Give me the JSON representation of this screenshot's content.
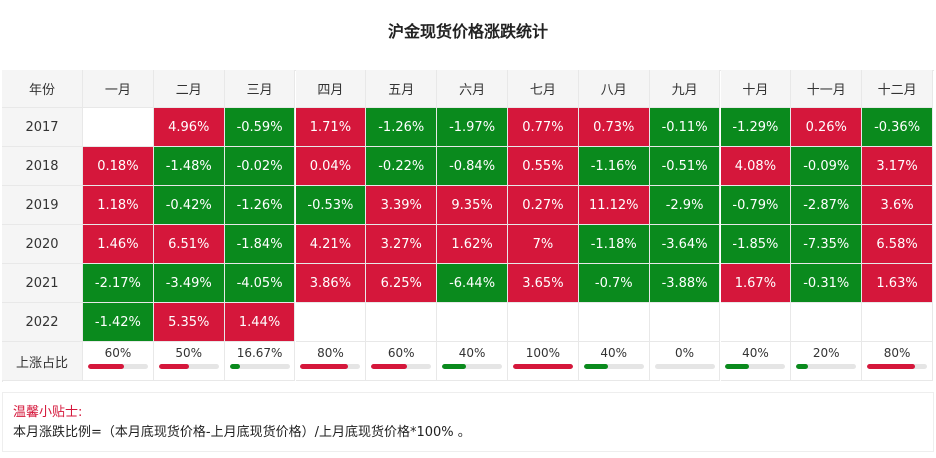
{
  "title": "沪金现货价格涨跌统计",
  "table": {
    "header": [
      "年份",
      "一月",
      "二月",
      "三月",
      "四月",
      "五月",
      "六月",
      "七月",
      "八月",
      "九月",
      "十月",
      "十一月",
      "十二月"
    ],
    "rows": [
      {
        "year": "2017",
        "cells": [
          null,
          "4.96%",
          "-0.59%",
          "1.71%",
          "-1.26%",
          "-1.97%",
          "0.77%",
          "0.73%",
          "-0.11%",
          "-1.29%",
          "0.26%",
          "-0.36%"
        ]
      },
      {
        "year": "2018",
        "cells": [
          "0.18%",
          "-1.48%",
          "-0.02%",
          "0.04%",
          "-0.22%",
          "-0.84%",
          "0.55%",
          "-1.16%",
          "-0.51%",
          "4.08%",
          "-0.09%",
          "3.17%"
        ]
      },
      {
        "year": "2019",
        "cells": [
          "1.18%",
          "-0.42%",
          "-1.26%",
          "-0.53%",
          "3.39%",
          "9.35%",
          "0.27%",
          "11.12%",
          "-2.9%",
          "-0.79%",
          "-2.87%",
          "3.6%"
        ]
      },
      {
        "year": "2020",
        "cells": [
          "1.46%",
          "6.51%",
          "-1.84%",
          "4.21%",
          "3.27%",
          "1.62%",
          "7%",
          "-1.18%",
          "-3.64%",
          "-1.85%",
          "-7.35%",
          "6.58%"
        ]
      },
      {
        "year": "2021",
        "cells": [
          "-2.17%",
          "-3.49%",
          "-4.05%",
          "3.86%",
          "6.25%",
          "-6.44%",
          "3.65%",
          "-0.7%",
          "-3.88%",
          "1.67%",
          "-0.31%",
          "1.63%"
        ]
      },
      {
        "year": "2022",
        "cells": [
          "-1.42%",
          "5.35%",
          "1.44%",
          null,
          null,
          null,
          null,
          null,
          null,
          null,
          null,
          null
        ]
      }
    ],
    "ratio": {
      "label": "上涨占比",
      "values": [
        {
          "value": 60,
          "label": "60%"
        },
        {
          "value": 50,
          "label": "50%"
        },
        {
          "value": 16.67,
          "label": "16.67%"
        },
        {
          "value": 80,
          "label": "80%"
        },
        {
          "value": 60,
          "label": "60%"
        },
        {
          "value": 40,
          "label": "40%"
        },
        {
          "value": 100,
          "label": "100%"
        },
        {
          "value": 40,
          "label": "40%"
        },
        {
          "value": 0,
          "label": "0%"
        },
        {
          "value": 40,
          "label": "40%"
        },
        {
          "value": 20,
          "label": "20%"
        },
        {
          "value": 80,
          "label": "80%"
        }
      ]
    }
  },
  "tip": {
    "title": "温馨小贴士:",
    "text": "本月涨跌比例=（本月底现货价格-上月底现货价格）/上月底现货价格*100% 。"
  }
}
